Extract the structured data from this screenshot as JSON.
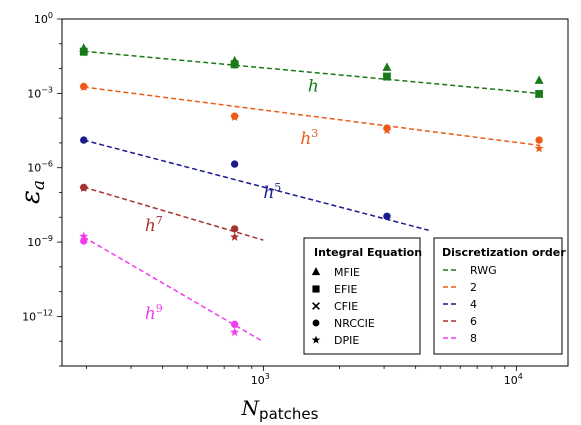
{
  "chart_data": {
    "type": "scatter",
    "xlabel": "N",
    "xlabel_sub": "patches",
    "ylabel": "ε",
    "ylabel_sub": "a",
    "x_scale": "log",
    "y_scale": "log",
    "xlim": [
      160,
      16000
    ],
    "ylim": [
      1e-14,
      1
    ],
    "grid": false,
    "x_ticks": [
      {
        "value": 1000,
        "base": "10",
        "exp": "3"
      },
      {
        "value": 10000,
        "base": "10",
        "exp": "4"
      }
    ],
    "y_ticks": [
      {
        "value": 1,
        "base": "10",
        "exp": "0"
      },
      {
        "value": 0.001,
        "base": "10",
        "exp": "−3"
      },
      {
        "value": 1e-06,
        "base": "10",
        "exp": "−6"
      },
      {
        "value": 1e-09,
        "base": "10",
        "exp": "−9"
      },
      {
        "value": 1e-12,
        "base": "10",
        "exp": "−12"
      }
    ],
    "series": [
      {
        "name": "RWG",
        "color": "#1a7a1a",
        "fit_line": {
          "x": [
            195,
            12300
          ],
          "y": [
            0.05,
            0.001
          ]
        },
        "annotation": {
          "base": "h",
          "exp": "",
          "x": 1500,
          "y": 0.0012
        },
        "points": [
          {
            "marker": "triangle",
            "x": [
              195,
              770,
              3080,
              12300
            ],
            "y": [
              0.065,
              0.02,
              0.011,
              0.0033
            ]
          },
          {
            "marker": "square",
            "x": [
              195,
              770,
              3080,
              12300
            ],
            "y": [
              0.048,
              0.015,
              0.0048,
              0.00095
            ]
          },
          {
            "marker": "x",
            "x": [
              195,
              770,
              3080,
              12300
            ],
            "y": [
              0.048,
              0.015,
              0.0048,
              0.00095
            ]
          },
          {
            "marker": "circle",
            "x": [
              195,
              770,
              3080,
              12300
            ],
            "y": [
              0.046,
              0.014,
              0.0046,
              0.00094
            ]
          },
          {
            "marker": "star",
            "x": [
              195,
              770,
              3080,
              12300
            ],
            "y": [
              0.045,
              0.014,
              0.0045,
              0.00092
            ]
          }
        ]
      },
      {
        "name": "2",
        "color": "#ee5b16",
        "fit_line": {
          "x": [
            195,
            12300
          ],
          "y": [
            0.0018,
            8e-06
          ]
        },
        "annotation": {
          "base": "h",
          "exp": "3",
          "x": 1400,
          "y": 9e-06
        },
        "points": [
          {
            "marker": "circle",
            "x": [
              195,
              770,
              3080,
              12300
            ],
            "y": [
              0.0019,
              0.00012,
              4e-05,
              1.3e-05
            ]
          },
          {
            "marker": "star",
            "x": [
              195,
              770,
              3080,
              12300
            ],
            "y": [
              0.0018,
              0.00011,
              3.2e-05,
              6e-06
            ]
          }
        ]
      },
      {
        "name": "4",
        "color": "#1a1a8c",
        "fit_line": {
          "x": [
            195,
            4500
          ],
          "y": [
            1.3e-05,
            3e-09
          ]
        },
        "annotation": {
          "base": "h",
          "exp": "5",
          "x": 1000,
          "y": 6e-08
        },
        "points": [
          {
            "marker": "circle",
            "x": [
              195,
              770,
              3080
            ],
            "y": [
              1.3e-05,
              1.4e-06,
              1.1e-08
            ]
          }
        ]
      },
      {
        "name": "6",
        "color": "#a63232",
        "fit_line": {
          "x": [
            195,
            1000
          ],
          "y": [
            1.65e-07,
            1.2e-09
          ]
        },
        "annotation": {
          "base": "h",
          "exp": "7",
          "x": 340,
          "y": 2.8e-09
        },
        "points": [
          {
            "marker": "circle",
            "x": [
              195,
              770
            ],
            "y": [
              1.6e-07,
              3.4e-09
            ]
          },
          {
            "marker": "star",
            "x": [
              195,
              770
            ],
            "y": [
              1.5e-07,
              1.6e-09
            ]
          }
        ]
      },
      {
        "name": "8",
        "color": "#f23cf0",
        "fit_line": {
          "x": [
            195,
            1000
          ],
          "y": [
            1.6e-09,
            9.5e-14
          ]
        },
        "annotation": {
          "base": "h",
          "exp": "9",
          "x": 340,
          "y": 8e-13
        },
        "points": [
          {
            "marker": "circle",
            "x": [
              195,
              770
            ],
            "y": [
              1.1e-09,
              4.8e-13
            ]
          },
          {
            "marker": "star",
            "x": [
              195,
              770
            ],
            "y": [
              1.7e-09,
              2.3e-13
            ]
          }
        ]
      }
    ],
    "legends": {
      "equation": {
        "title": "Integral Equation",
        "items": [
          {
            "label": "MFIE",
            "marker": "triangle"
          },
          {
            "label": "EFIE",
            "marker": "square"
          },
          {
            "label": "CFIE",
            "marker": "x"
          },
          {
            "label": "NRCCIE",
            "marker": "circle"
          },
          {
            "label": "DPIE",
            "marker": "star"
          }
        ]
      },
      "order": {
        "title": "Discretization order",
        "items": [
          {
            "label": "RWG",
            "color": "#1a7a1a"
          },
          {
            "label": "2",
            "color": "#ee5b16"
          },
          {
            "label": "4",
            "color": "#1a1a8c"
          },
          {
            "label": "6",
            "color": "#a63232"
          },
          {
            "label": "8",
            "color": "#f23cf0"
          }
        ]
      }
    }
  }
}
